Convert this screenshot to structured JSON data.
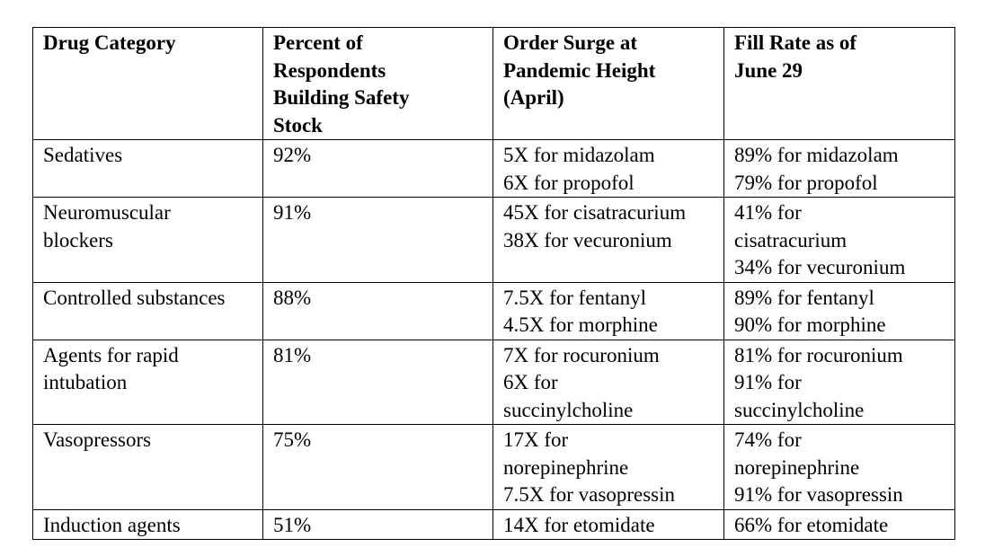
{
  "table": {
    "headers": [
      [
        "Drug Category"
      ],
      [
        "Percent of",
        "Respondents",
        "Building Safety",
        "Stock"
      ],
      [
        "Order Surge at",
        "Pandemic Height",
        "(April)"
      ],
      [
        "Fill Rate as of",
        "June 29"
      ]
    ],
    "rows": [
      {
        "category": [
          "Sedatives"
        ],
        "percent": "92%",
        "surge": [
          "5X for midazolam",
          "6X for propofol"
        ],
        "fill": [
          "89% for midazolam",
          "79% for propofol"
        ]
      },
      {
        "category": [
          "Neuromuscular",
          "blockers"
        ],
        "percent": "91%",
        "surge": [
          "45X for cisatracurium",
          "38X for vecuronium"
        ],
        "fill": [
          "41% for",
          "cisatracurium",
          "34% for vecuronium"
        ]
      },
      {
        "category": [
          "Controlled substances"
        ],
        "percent": "88%",
        "surge": [
          "7.5X for fentanyl",
          "4.5X for morphine"
        ],
        "fill": [
          "89% for fentanyl",
          "90% for morphine"
        ]
      },
      {
        "category": [
          "Agents for rapid",
          "intubation"
        ],
        "percent": "81%",
        "surge": [
          "7X for rocuronium",
          "6X for",
          "succinylcholine"
        ],
        "fill": [
          "81% for rocuronium",
          "91% for",
          "succinylcholine"
        ]
      },
      {
        "category": [
          "Vasopressors"
        ],
        "percent": "75%",
        "surge": [
          "17X for",
          "norepinephrine",
          "7.5X for vasopressin"
        ],
        "fill": [
          "74% for",
          "norepinephrine",
          "91% for vasopressin"
        ]
      },
      {
        "category": [
          "Induction agents"
        ],
        "percent": "51%",
        "surge": [
          "14X for etomidate"
        ],
        "fill": [
          "66% for etomidate"
        ]
      }
    ]
  }
}
